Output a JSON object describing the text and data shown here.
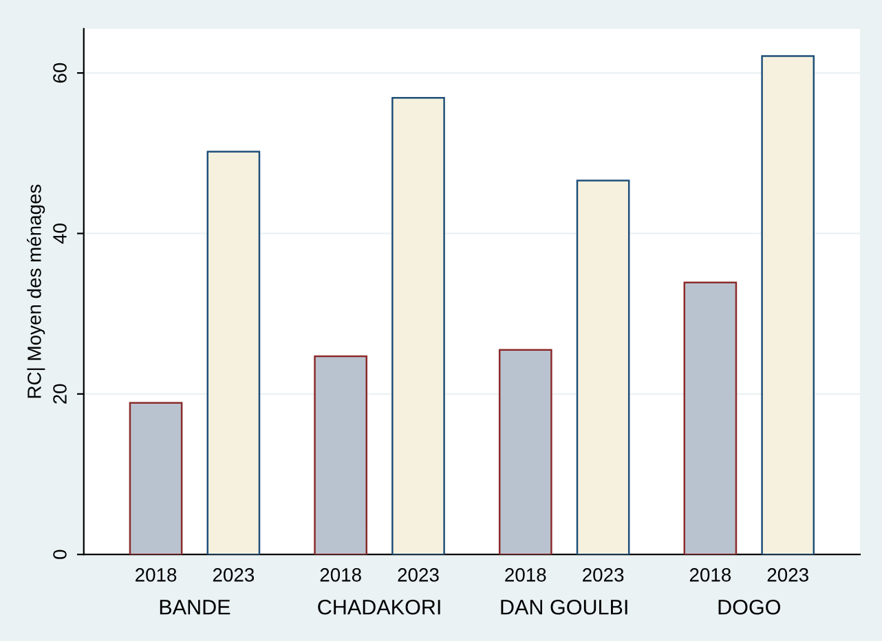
{
  "chart_data": {
    "type": "bar",
    "ylabel": "RC| Moyen des ménages",
    "categories": [
      "BANDE",
      "CHADAKORI",
      "DAN GOULBI",
      "DOGO"
    ],
    "series": [
      {
        "name": "2018",
        "color": "#b9c3cf",
        "values": [
          18.9,
          24.7,
          25.5,
          33.9
        ]
      },
      {
        "name": "2023",
        "color": "#f6f1de",
        "values": [
          50.2,
          56.9,
          46.6,
          62.1
        ]
      }
    ],
    "ylim": [
      0,
      65.5
    ],
    "yticks": [
      0,
      20,
      40,
      60
    ],
    "grid": "y",
    "legend": false
  }
}
